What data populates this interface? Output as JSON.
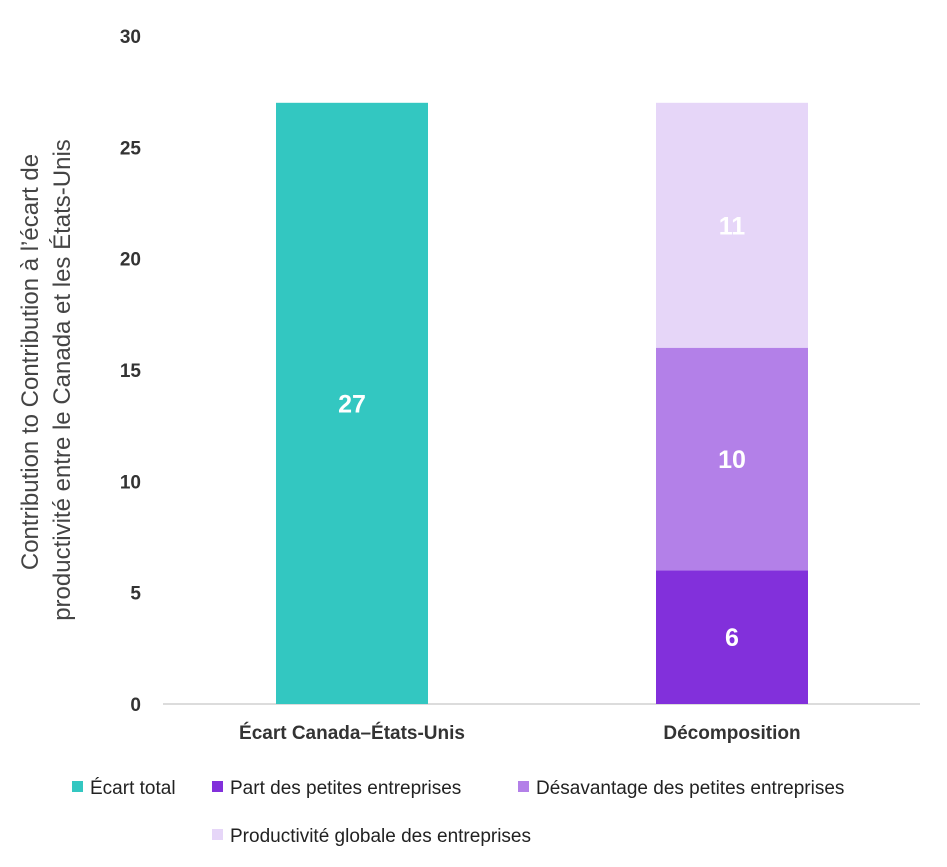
{
  "chart_data": {
    "type": "bar",
    "stacked": true,
    "categories": [
      "Écart Canada–États-Unis",
      "Décomposition"
    ],
    "series": [
      {
        "name": "Écart total",
        "color": "#33c7c1",
        "values": [
          27,
          0
        ]
      },
      {
        "name": "Part des petites entreprises",
        "color": "#8230db",
        "values": [
          0,
          6
        ]
      },
      {
        "name": "Désavantage des petites entreprises",
        "color": "#b380e8",
        "values": [
          0,
          10
        ]
      },
      {
        "name": "Productivité globale des entreprises",
        "color": "#e6d6f8",
        "values": [
          0,
          11
        ]
      }
    ],
    "data_labels": [
      "27",
      "6",
      "10",
      "11"
    ],
    "ylabel_lines": [
      "Contribution to Contribution à l’écart de",
      "productivité entre le Canada et les États-Unis"
    ],
    "ylim": [
      0,
      30
    ],
    "yticks": [
      0,
      5,
      10,
      15,
      20,
      25,
      30
    ],
    "grid": false,
    "legend_position": "bottom"
  }
}
